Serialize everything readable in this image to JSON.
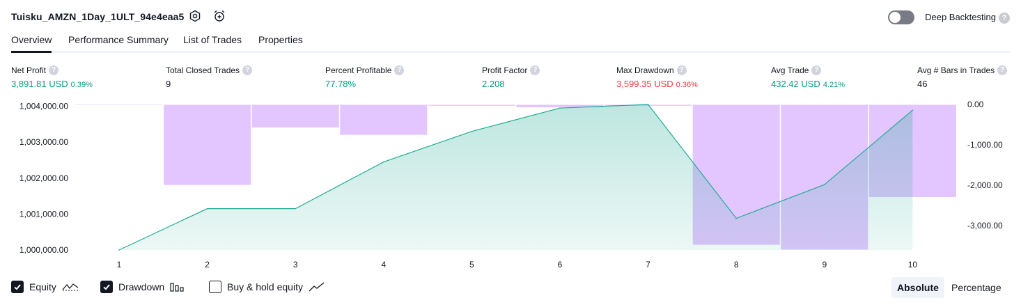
{
  "header": {
    "strategy_name": "Tuisku_AMZN_1Day_1ULT_94e4eaa5",
    "settings_icon": "gear-icon",
    "alert_icon": "alarm-clock-plus-icon",
    "deep_backtesting_label": "Deep Backtesting",
    "deep_backtesting_enabled": false,
    "help_glyph": "?"
  },
  "tabs": [
    {
      "label": "Overview",
      "active": true
    },
    {
      "label": "Performance Summary",
      "active": false
    },
    {
      "label": "List of Trades",
      "active": false
    },
    {
      "label": "Properties",
      "active": false
    }
  ],
  "metrics": [
    {
      "label": "Net Profit",
      "value": "3,891.81 USD",
      "sub": "0.39%",
      "color": "green"
    },
    {
      "label": "Total Closed Trades",
      "value": "9",
      "sub": "",
      "color": "dark"
    },
    {
      "label": "Percent Profitable",
      "value": "77.78%",
      "sub": "",
      "color": "green"
    },
    {
      "label": "Profit Factor",
      "value": "2.208",
      "sub": "",
      "color": "green"
    },
    {
      "label": "Max Drawdown",
      "value": "3,599.35 USD",
      "sub": "0.36%",
      "color": "red"
    },
    {
      "label": "Avg Trade",
      "value": "432.42 USD",
      "sub": "4.21%",
      "color": "green"
    },
    {
      "label": "Avg # Bars in Trades",
      "value": "46",
      "sub": "",
      "color": "dark"
    }
  ],
  "chart_data": {
    "type": "line",
    "x": [
      1,
      2,
      3,
      4,
      5,
      6,
      7,
      8,
      9,
      10
    ],
    "left_axis": {
      "ticks": [
        1000000,
        1001000,
        1002000,
        1003000,
        1004000
      ],
      "tick_labels": [
        "1,000,000.00",
        "1,001,000.00",
        "1,002,000.00",
        "1,003,000.00",
        "1,004,000.00"
      ],
      "ylim": [
        1000000,
        1004050
      ]
    },
    "right_axis": {
      "ticks": [
        0,
        -1000,
        -2000,
        -3000
      ],
      "tick_labels": [
        "0.00",
        "-1,000.00",
        "-2,000.00",
        "-3,000.00"
      ],
      "ylim": [
        -3600,
        0
      ]
    },
    "series": [
      {
        "name": "Equity",
        "type": "area",
        "axis": "left",
        "color": "#22ab94",
        "values": [
          1000000,
          1001150,
          1001150,
          1002450,
          1003300,
          1003950,
          1004050,
          1000880,
          1001820,
          1003890
        ]
      },
      {
        "name": "Drawdown",
        "type": "bar",
        "axis": "right",
        "color": "#e1c3ff",
        "values": [
          -20,
          -2000,
          -580,
          -760,
          -40,
          -80,
          -40,
          -3480,
          -3599,
          -2300
        ]
      }
    ],
    "grid": false
  },
  "legend": [
    {
      "label": "Equity",
      "checked": true,
      "icon": "equity-line-icon"
    },
    {
      "label": "Drawdown",
      "checked": true,
      "icon": "drawdown-bars-icon"
    },
    {
      "label": "Buy & hold equity",
      "checked": false,
      "icon": "buy-hold-line-icon"
    }
  ],
  "modes": [
    {
      "label": "Absolute",
      "active": true
    },
    {
      "label": "Percentage",
      "active": false
    }
  ]
}
